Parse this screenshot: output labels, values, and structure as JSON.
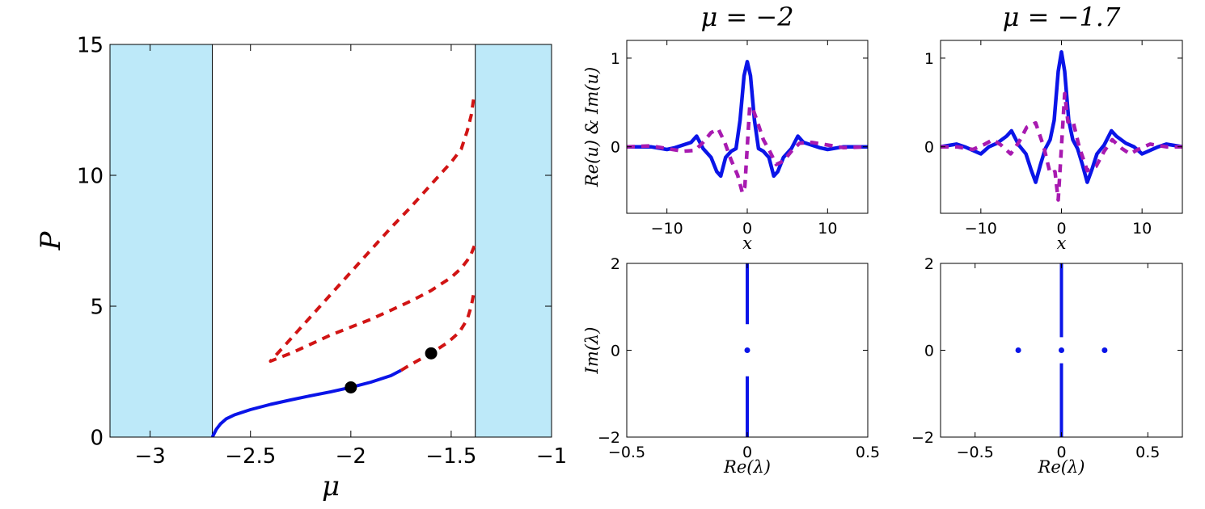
{
  "colors": {
    "band_fill": "#bde9f9",
    "stable_line": "#0a14e8",
    "unstable_line": "#d11414",
    "imag_line": "#a81ab0",
    "point": "#000000"
  },
  "chart_data": [
    {
      "id": "power-curve",
      "type": "line",
      "xlabel": "μ",
      "ylabel": "P",
      "xlim": [
        -3.2,
        -1.0
      ],
      "ylim": [
        0,
        15
      ],
      "xticks": [
        "−3",
        "−2.5",
        "−2",
        "−1.5",
        "−1"
      ],
      "yticks": [
        "0",
        "5",
        "10",
        "15"
      ],
      "bands": [
        {
          "x": [
            -3.2,
            -2.69
          ]
        },
        {
          "x": [
            -1.38,
            -1.0
          ]
        }
      ],
      "series": [
        {
          "style": "stable",
          "x": [
            -2.69,
            -2.67,
            -2.65,
            -2.62,
            -2.58,
            -2.5,
            -2.4,
            -2.3,
            -2.2,
            -2.1,
            -2.0,
            -1.9,
            -1.8,
            -1.75
          ],
          "y": [
            0.0,
            0.3,
            0.5,
            0.7,
            0.85,
            1.05,
            1.25,
            1.42,
            1.58,
            1.73,
            1.9,
            2.1,
            2.35,
            2.55
          ]
        },
        {
          "style": "unstable",
          "x": [
            -1.75,
            -1.7,
            -1.6,
            -1.52,
            -1.46,
            -1.42,
            -1.4,
            -1.385
          ],
          "y": [
            2.55,
            2.78,
            3.2,
            3.6,
            4.0,
            4.5,
            5.0,
            5.6
          ]
        },
        {
          "style": "unstable",
          "x": [
            -1.385,
            -1.4,
            -1.42,
            -1.45,
            -1.5,
            -1.6,
            -1.7,
            -1.8,
            -1.9,
            -2.0,
            -2.1,
            -2.2,
            -2.3,
            -2.4,
            -2.3,
            -2.2,
            -2.1,
            -2.0,
            -1.9,
            -1.8,
            -1.7,
            -1.6,
            -1.5,
            -1.45,
            -1.42,
            -1.4,
            -1.385
          ],
          "y": [
            7.3,
            7.0,
            6.75,
            6.45,
            6.1,
            5.6,
            5.2,
            4.85,
            4.5,
            4.2,
            3.9,
            3.55,
            3.2,
            2.9,
            3.75,
            4.6,
            5.45,
            6.3,
            7.15,
            8.0,
            8.8,
            9.65,
            10.5,
            11.0,
            11.7,
            12.3,
            13.1
          ]
        }
      ],
      "points": [
        {
          "x": -2.0,
          "y": 1.9
        },
        {
          "x": -1.6,
          "y": 3.2
        }
      ]
    },
    {
      "id": "profile-mu-2",
      "type": "line",
      "title": "μ = −2",
      "xlabel": "x",
      "ylabel": "Re(u) & Im(u)",
      "xlim": [
        -15,
        15
      ],
      "ylim": [
        -0.75,
        1.2
      ],
      "xticks": [
        "−10",
        "0",
        "10"
      ],
      "yticks": [
        "0",
        "1"
      ],
      "series": [
        {
          "style": "real",
          "x": [
            -15,
            -12,
            -10,
            -9,
            -8,
            -7,
            -6.3,
            -5.5,
            -4.5,
            -3.8,
            -3.3,
            -2.7,
            -2.0,
            -1.4,
            -0.9,
            -0.4,
            0,
            0.4,
            0.9,
            1.4,
            2.0,
            2.7,
            3.3,
            3.8,
            4.5,
            5.5,
            6.3,
            7,
            8,
            9,
            10,
            12,
            15
          ],
          "y": [
            0,
            0.0,
            -0.03,
            -0.01,
            0.02,
            0.05,
            0.12,
            -0.02,
            -0.12,
            -0.28,
            -0.33,
            -0.12,
            -0.05,
            -0.02,
            0.3,
            0.8,
            0.96,
            0.8,
            0.3,
            -0.02,
            -0.05,
            -0.12,
            -0.33,
            -0.28,
            -0.12,
            -0.02,
            0.12,
            0.05,
            0.02,
            -0.01,
            -0.03,
            0.0,
            0
          ]
        },
        {
          "style": "imag",
          "x": [
            -15,
            -12,
            -10,
            -8,
            -6.5,
            -5.5,
            -4.5,
            -3.6,
            -2.8,
            -2.0,
            -1.2,
            -0.6,
            -0.3,
            0,
            0.3,
            0.6,
            1.2,
            2.0,
            2.8,
            3.6,
            4.5,
            5.5,
            6.5,
            8,
            10,
            12,
            15
          ],
          "y": [
            0,
            0.01,
            -0.02,
            -0.05,
            -0.04,
            0.05,
            0.16,
            0.2,
            0.05,
            -0.15,
            -0.32,
            -0.52,
            -0.45,
            0,
            0.45,
            0.45,
            0.3,
            0.08,
            -0.05,
            -0.2,
            -0.16,
            -0.05,
            0.04,
            0.05,
            0.02,
            -0.01,
            0
          ]
        }
      ]
    },
    {
      "id": "profile-mu-17",
      "type": "line",
      "title": "μ = −1.7",
      "xlabel": "x",
      "ylabel": "",
      "xlim": [
        -15,
        15
      ],
      "ylim": [
        -0.75,
        1.2
      ],
      "xticks": [
        "−10",
        "0",
        "10"
      ],
      "yticks": [
        "0",
        "1"
      ],
      "series": [
        {
          "style": "real",
          "x": [
            -15,
            -13,
            -12,
            -10,
            -9,
            -8,
            -6.8,
            -6.2,
            -5.3,
            -4.4,
            -3.8,
            -3.2,
            -2.6,
            -2.0,
            -1.4,
            -0.9,
            -0.4,
            0,
            0.4,
            0.9,
            1.4,
            2.0,
            2.6,
            3.2,
            3.8,
            4.4,
            5.3,
            6.2,
            6.8,
            8,
            9,
            10,
            12,
            13,
            15
          ],
          "y": [
            0,
            0.03,
            0.0,
            -0.08,
            0.0,
            0.04,
            0.12,
            0.18,
            0.02,
            -0.08,
            -0.25,
            -0.4,
            -0.2,
            -0.02,
            0.08,
            0.3,
            0.85,
            1.07,
            0.85,
            0.3,
            0.08,
            -0.02,
            -0.2,
            -0.4,
            -0.25,
            -0.08,
            0.02,
            0.18,
            0.12,
            0.04,
            0.0,
            -0.08,
            0.0,
            0.03,
            0
          ]
        },
        {
          "style": "imag",
          "x": [
            -15,
            -13,
            -11,
            -9.5,
            -8.5,
            -7.5,
            -6.3,
            -5.3,
            -4.3,
            -3.2,
            -2.2,
            -1.4,
            -0.8,
            -0.4,
            0,
            0.4,
            0.8,
            1.4,
            2.2,
            3.2,
            4.3,
            5.3,
            6.3,
            7.5,
            8.5,
            9.5,
            11,
            13,
            15
          ],
          "y": [
            0,
            0.0,
            -0.03,
            0.03,
            0.08,
            0.02,
            -0.08,
            0.05,
            0.22,
            0.27,
            0.0,
            -0.3,
            -0.28,
            -0.6,
            0,
            0.6,
            0.28,
            0.3,
            0.0,
            -0.27,
            -0.22,
            -0.05,
            0.08,
            -0.02,
            -0.08,
            -0.03,
            0.03,
            0.0,
            0
          ]
        }
      ]
    },
    {
      "id": "spectrum-mu-2",
      "type": "scatter",
      "xlabel": "Re(λ)",
      "ylabel": "Im(λ)",
      "xlim": [
        -0.5,
        0.5
      ],
      "ylim": [
        -2,
        2
      ],
      "xticks": [
        "−0.5",
        "0",
        "0.5"
      ],
      "yticks": [
        "−2",
        "0",
        "2"
      ],
      "continuous_spectrum": [
        {
          "x": 0,
          "y0": 0.6,
          "y1": 2
        },
        {
          "x": 0,
          "y0": -2,
          "y1": -0.6
        }
      ],
      "eigenvalues": [
        {
          "x": 0,
          "y": 0
        }
      ]
    },
    {
      "id": "spectrum-mu-17",
      "type": "scatter",
      "xlabel": "Re(λ)",
      "ylabel": "",
      "xlim": [
        -0.7,
        0.7
      ],
      "ylim": [
        -2,
        2
      ],
      "xticks": [
        "−0.5",
        "0",
        "0.5"
      ],
      "yticks": [
        "−2",
        "0",
        "2"
      ],
      "continuous_spectrum": [
        {
          "x": 0,
          "y0": 0.3,
          "y1": 2
        },
        {
          "x": 0,
          "y0": -2,
          "y1": -0.3
        }
      ],
      "eigenvalues": [
        {
          "x": -0.25,
          "y": 0
        },
        {
          "x": 0,
          "y": 0
        },
        {
          "x": 0.25,
          "y": 0
        }
      ]
    }
  ]
}
